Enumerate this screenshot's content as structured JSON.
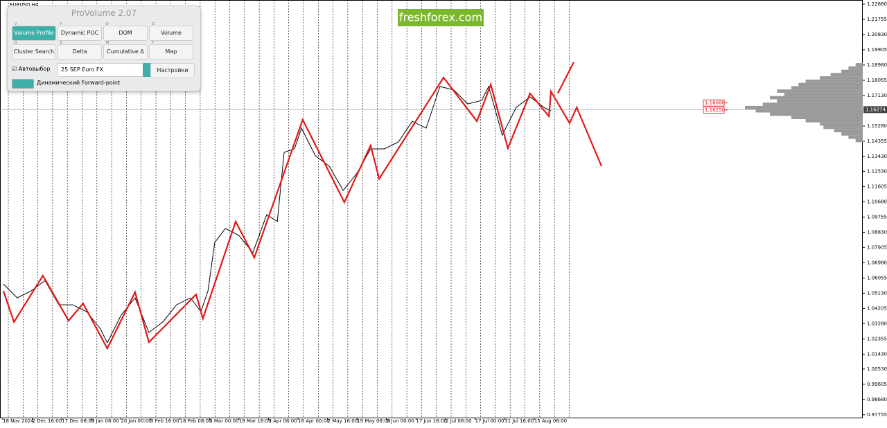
{
  "chart_data": {
    "type": "line",
    "symbol": "EURUSD,H4",
    "watermark": "freshforex.com",
    "xlim": [
      -0.094,
      29.13
    ],
    "ylim": [
      0.9758,
      1.2293
    ],
    "xticks": [
      {
        "value": 0,
        "label": "18 Nov 2024"
      },
      {
        "value": 1,
        "label": "2 Dec 16:00"
      },
      {
        "value": 2,
        "label": "17 Dec 08:00"
      },
      {
        "value": 3,
        "label": "3 Jan 08:00"
      },
      {
        "value": 4,
        "label": "20 Jan 00:00"
      },
      {
        "value": 5,
        "label": "3 Feb 16:00"
      },
      {
        "value": 6,
        "label": "18 Feb 08:00"
      },
      {
        "value": 7,
        "label": "5 Mar 00:00"
      },
      {
        "value": 8,
        "label": "19 Mar 16:00"
      },
      {
        "value": 9,
        "label": "3 Apr 08:00"
      },
      {
        "value": 10,
        "label": "18 Apr 00:00"
      },
      {
        "value": 11,
        "label": "2 May 16:00"
      },
      {
        "value": 12,
        "label": "19 May 08:00"
      },
      {
        "value": 13,
        "label": "3 Jun 00:00"
      },
      {
        "value": 14,
        "label": "17 Jun 16:00"
      },
      {
        "value": 15,
        "label": "2 Jul 08:00"
      },
      {
        "value": 16,
        "label": "17 Jul 00:00"
      },
      {
        "value": 17,
        "label": "31 Jul 16:00"
      },
      {
        "value": 18,
        "label": "15 Aug 08:00"
      }
    ],
    "yticks": [
      {
        "value": 1.2268,
        "label": "1.22680"
      },
      {
        "value": 1.21755,
        "label": "1.21755"
      },
      {
        "value": 1.2083,
        "label": "1.20830"
      },
      {
        "value": 1.19905,
        "label": "1.19905"
      },
      {
        "value": 1.1898,
        "label": "1.18980"
      },
      {
        "value": 1.18055,
        "label": "1.18055"
      },
      {
        "value": 1.1713,
        "label": "1.17130"
      },
      {
        "value": 1.1528,
        "label": "1.15280"
      },
      {
        "value": 1.14355,
        "label": "1.14355"
      },
      {
        "value": 1.1343,
        "label": "1.13430"
      },
      {
        "value": 1.1253,
        "label": "1.12530"
      },
      {
        "value": 1.11605,
        "label": "1.11605"
      },
      {
        "value": 1.1068,
        "label": "1.10680"
      },
      {
        "value": 1.09755,
        "label": "1.09755"
      },
      {
        "value": 1.0883,
        "label": "1.08830"
      },
      {
        "value": 1.07905,
        "label": "1.07905"
      },
      {
        "value": 1.0698,
        "label": "1.06980"
      },
      {
        "value": 1.06055,
        "label": "1.06055"
      },
      {
        "value": 1.0513,
        "label": "1.05130"
      },
      {
        "value": 1.04205,
        "label": "1.04205"
      },
      {
        "value": 1.0328,
        "label": "1.03280"
      },
      {
        "value": 1.02355,
        "label": "1.02355"
      },
      {
        "value": 1.0143,
        "label": "1.01430"
      },
      {
        "value": 1.0053,
        "label": "1.00530"
      },
      {
        "value": 0.99605,
        "label": "0.99605"
      },
      {
        "value": 0.9868,
        "label": "0.98680"
      },
      {
        "value": 0.97755,
        "label": "0.97755"
      }
    ],
    "last_price": {
      "value": 1.16274,
      "label": "1.16274"
    },
    "levels": [
      {
        "value": 1.1668,
        "label": "1.16680"
      },
      {
        "value": 1.1625,
        "label": "1.16250"
      }
    ],
    "series": [
      {
        "color": "#000000",
        "x": [
          0.02,
          0.49,
          0.96,
          1.43,
          1.9,
          2.37,
          2.84,
          3.31,
          3.54,
          4.01,
          4.48,
          4.95,
          5.42,
          5.89,
          6.36,
          6.71,
          6.95,
          7.18,
          7.54,
          8.0,
          8.47,
          8.94,
          9.3,
          9.53,
          9.88,
          10.12,
          10.59,
          11.06,
          11.53,
          12.0,
          12.46,
          12.93,
          13.4,
          13.87,
          14.34,
          14.81,
          15.28,
          15.75,
          16.22,
          16.46,
          16.92,
          17.39,
          17.86,
          18.33,
          18.57
        ],
        "values": [
          1.0569,
          1.0485,
          1.0527,
          1.059,
          1.0443,
          1.0443,
          1.0401,
          1.0296,
          1.0212,
          1.038,
          1.0485,
          1.0275,
          1.0338,
          1.0443,
          1.0485,
          1.0401,
          1.0527,
          1.0821,
          1.0906,
          1.0864,
          1.0758,
          1.099,
          1.0948,
          1.1368,
          1.1389,
          1.1515,
          1.1347,
          1.1284,
          1.1137,
          1.1242,
          1.1389,
          1.1389,
          1.1431,
          1.1557,
          1.1515,
          1.1768,
          1.1747,
          1.1662,
          1.1683,
          1.1768,
          1.1473,
          1.1641,
          1.1705,
          1.1641,
          1.162
        ]
      },
      {
        "color": "#e01818",
        "x": [
          0.02,
          0.38,
          1.36,
          2.23,
          2.72,
          3.54,
          4.48,
          4.95,
          6.55,
          6.78,
          7.89,
          8.52,
          10.16,
          11.57,
          12.46,
          12.75,
          14.93,
          16.06,
          16.53,
          17.11,
          17.86,
          18.5,
          18.57,
          19.2,
          19.44,
          20.28,
          null,
          18.8,
          19.34
        ],
        "values": [
          1.0527,
          1.0338,
          1.062,
          1.0346,
          1.0451,
          1.0178,
          1.0519,
          1.0216,
          1.0506,
          1.0359,
          1.0948,
          1.0729,
          1.1566,
          1.1065,
          1.141,
          1.1208,
          1.1822,
          1.1557,
          1.178,
          1.1393,
          1.1726,
          1.1587,
          1.1738,
          1.1545,
          1.1641,
          1.1284,
          null,
          1.1726,
          1.1915
        ]
      }
    ],
    "volume_profile": {
      "color": "#9a9a9a",
      "levels": [
        1.144,
        1.146,
        1.148,
        1.15,
        1.152,
        1.154,
        1.156,
        1.158,
        1.16,
        1.162,
        1.164,
        1.166,
        1.168,
        1.17,
        1.172,
        1.174,
        1.176,
        1.178,
        1.18,
        1.182,
        1.184,
        1.186,
        1.188,
        1.19
      ],
      "values": [
        10,
        20,
        30,
        40,
        55,
        60,
        80,
        100,
        130,
        150,
        165,
        140,
        120,
        130,
        110,
        120,
        100,
        90,
        80,
        60,
        45,
        30,
        20,
        10
      ]
    }
  },
  "panel": {
    "title": "ProVolume 2.07",
    "buttons": [
      {
        "label": "Volume Profile",
        "key": "V"
      },
      {
        "label": "Dynamic POC",
        "key": "P"
      },
      {
        "label": "DOM",
        "key": "D"
      },
      {
        "label": "Volume",
        "key": "O"
      },
      {
        "label": "Cluster Search",
        "key": "B"
      },
      {
        "label": "Delta",
        "key": "E"
      },
      {
        "label": "Cumulative Δ",
        "key": "M"
      },
      {
        "label": "Map",
        "key": "F"
      }
    ],
    "auto_select": "Автовыбор",
    "contract": "25 SEP Euro FX",
    "settings": "Настройки",
    "forward_point": "Динамический Forward-point"
  }
}
